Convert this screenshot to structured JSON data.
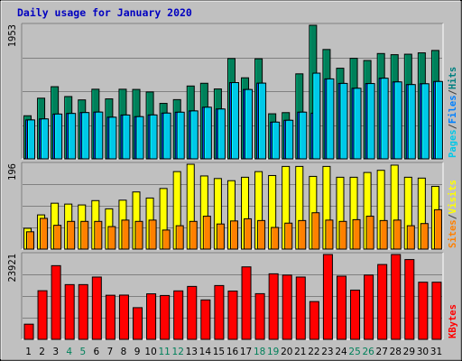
{
  "chart_data": {
    "type": "bar",
    "title": "Daily usage for January 2020",
    "days": [
      "1",
      "2",
      "3",
      "4",
      "5",
      "6",
      "7",
      "8",
      "9",
      "10",
      "11",
      "12",
      "13",
      "14",
      "15",
      "16",
      "17",
      "18",
      "19",
      "20",
      "21",
      "22",
      "23",
      "24",
      "25",
      "26",
      "27",
      "28",
      "29",
      "30",
      "31"
    ],
    "weekend_days": [
      "4",
      "5",
      "11",
      "12",
      "18",
      "19",
      "25",
      "26"
    ],
    "panels": [
      {
        "id": "hits",
        "max_label": "1953",
        "max": 1953,
        "legend": [
          "Pages",
          "/",
          "Files",
          "/",
          "Hits"
        ],
        "legend_colors": [
          "#00c8e8",
          "#404040",
          "#0080ff",
          "#404040",
          "#008080"
        ],
        "series": [
          {
            "name": "Hits",
            "color": "#00805a",
            "values": [
              630,
              887,
              1055,
              911,
              862,
              1018,
              877,
              1018,
              1015,
              978,
              811,
              866,
              1065,
              1105,
              1022,
              1467,
              1185,
              1463,
              659,
              676,
              1243,
              1953,
              1599,
              1325,
              1470,
              1438,
              1540,
              1523,
              1530,
              1550,
              1585
            ]
          },
          {
            "name": "Files",
            "color": "#0040ff",
            "values": [
              569,
              584,
              655,
              664,
              677,
              684,
              609,
              641,
              617,
              642,
              669,
              682,
              701,
              755,
              729,
              1115,
              1014,
              1107,
              537,
              564,
              683,
              668,
              1169,
              1103,
              1032,
              1101,
              1179,
              1125,
              1086,
              1098,
              1131
            ]
          },
          {
            "name": "Pages",
            "color": "#00c8e8",
            "values": [
              569,
              584,
              655,
              664,
              677,
              684,
              609,
              641,
              617,
              642,
              669,
              682,
              701,
              755,
              729,
              1115,
              1014,
              1107,
              537,
              564,
              683,
              1253,
              1169,
              1103,
              1032,
              1101,
              1179,
              1125,
              1086,
              1098,
              1131
            ]
          }
        ]
      },
      {
        "id": "visits",
        "max_label": "196",
        "max": 196,
        "legend": [
          "Sites",
          "/",
          "Visits"
        ],
        "legend_colors": [
          "#ff8000",
          "#404040",
          "#ffff00"
        ],
        "series": [
          {
            "name": "Visits",
            "color": "#ffff00",
            "values": [
              48,
              79,
              106,
              104,
              102,
              112,
              93,
              113,
              132,
              118,
              140,
              179,
              196,
              169,
              163,
              158,
              166,
              179,
              170,
              191,
              191,
              168,
              191,
              166,
              166,
              177,
              182,
              194,
              166,
              164,
              145
            ]
          },
          {
            "name": "Sites",
            "color": "#ff8000",
            "values": [
              40,
              71,
              55,
              64,
              64,
              64,
              52,
              67,
              64,
              67,
              44,
              54,
              64,
              76,
              58,
              65,
              70,
              66,
              50,
              60,
              66,
              84,
              67,
              64,
              68,
              76,
              66,
              67,
              54,
              59,
              91
            ]
          }
        ]
      },
      {
        "id": "kbytes",
        "max_label": "23921",
        "max": 23921,
        "legend": [
          "KBytes"
        ],
        "legend_colors": [
          "#ff0000"
        ],
        "series": [
          {
            "name": "KBytes",
            "color": "#ff0000",
            "values": [
              4281,
              13710,
              20776,
              15434,
              15434,
              17564,
              12436,
              12479,
              8931,
              12836,
              12364,
              13664,
              14920,
              11114,
              15170,
              13617,
              20434,
              12878,
              18479,
              18116,
              17564,
              10650,
              23921,
              17813,
              13882,
              18125,
              21100,
              23921,
              22500,
              16109,
              16109
            ]
          }
        ]
      }
    ]
  }
}
